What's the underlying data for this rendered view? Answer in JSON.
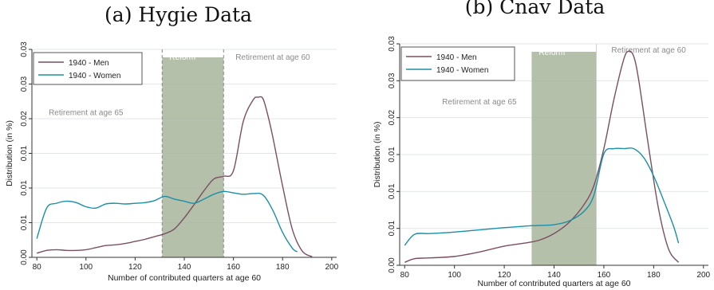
{
  "chart_data": [
    {
      "type": "line",
      "panel_title": "(a) Hygie Data",
      "xlabel": "Number of contributed quarters at age 60",
      "ylabel": "Distribution (in %)",
      "xlim": [
        78,
        202
      ],
      "ylim": [
        0,
        0.03
      ],
      "xticks": [
        80,
        100,
        120,
        140,
        160,
        180,
        200
      ],
      "yticks": [
        0.0,
        0.005,
        0.01,
        0.015,
        0.02,
        0.025,
        0.03
      ],
      "ytick_labels": [
        "0.00",
        "0.01",
        "0.01",
        "0.01",
        "0.02",
        "0.03",
        "0.03"
      ],
      "grid": true,
      "legend_position": "top-left",
      "shaded_region": {
        "label": "Reform",
        "x0": 131,
        "x1": 156,
        "dashed_border": true
      },
      "annotations": [
        {
          "text": "Retirement at age 65",
          "x": 100,
          "y": 0.0205
        },
        {
          "text": "Retirement at age 60",
          "x": 176,
          "y": 0.0285
        }
      ],
      "series": [
        {
          "name": "1940 - Men",
          "color": "#7a4f63",
          "x": [
            80,
            84,
            88,
            92,
            96,
            100,
            104,
            108,
            112,
            116,
            120,
            124,
            128,
            132,
            136,
            140,
            144,
            148,
            152,
            156,
            160,
            164,
            168,
            170,
            172,
            174,
            176,
            180,
            184,
            188,
            192
          ],
          "y": [
            0.0006,
            0.001,
            0.0011,
            0.001,
            0.001,
            0.0011,
            0.0014,
            0.0017,
            0.0018,
            0.002,
            0.0023,
            0.0026,
            0.003,
            0.0034,
            0.0041,
            0.0057,
            0.0076,
            0.0096,
            0.0113,
            0.0117,
            0.0125,
            0.0196,
            0.0227,
            0.0231,
            0.0229,
            0.0205,
            0.0174,
            0.0103,
            0.004,
            0.0009,
            0.0001
          ]
        },
        {
          "name": "1940 - Women",
          "color": "#1a8fa6",
          "x": [
            80,
            84,
            88,
            92,
            96,
            100,
            104,
            108,
            112,
            116,
            120,
            124,
            128,
            132,
            136,
            140,
            144,
            148,
            152,
            156,
            160,
            164,
            168,
            172,
            176,
            180,
            184,
            186
          ],
          "y": [
            0.0027,
            0.0071,
            0.0078,
            0.0081,
            0.0079,
            0.0073,
            0.0071,
            0.0077,
            0.0078,
            0.0077,
            0.0078,
            0.0079,
            0.0082,
            0.0088,
            0.0084,
            0.0081,
            0.0078,
            0.0084,
            0.0091,
            0.0095,
            0.0093,
            0.0091,
            0.0092,
            0.009,
            0.0068,
            0.0036,
            0.0013,
            0.0008
          ]
        }
      ]
    },
    {
      "type": "line",
      "panel_title": "(b) Cnav Data",
      "xlabel": "Number of contributed quarters at age 60",
      "ylabel": "Distribution (in %)",
      "xlim": [
        78,
        202
      ],
      "ylim": [
        0,
        0.03
      ],
      "xticks": [
        80,
        100,
        120,
        140,
        160,
        180,
        200
      ],
      "yticks": [
        0.0,
        0.005,
        0.01,
        0.015,
        0.02,
        0.025,
        0.03
      ],
      "ytick_labels": [
        "0.00",
        "0.01",
        "0.01",
        "0.01",
        "0.02",
        "0.03",
        "0.03"
      ],
      "grid": true,
      "legend_position": "top-left",
      "shaded_region": {
        "label": "Reform",
        "x0": 131,
        "x1": 157,
        "dashed_border": false
      },
      "annotations": [
        {
          "text": "Retirement at age 65",
          "x": 110,
          "y": 0.0218
        },
        {
          "text": "Retirement at age 60",
          "x": 178,
          "y": 0.0288
        }
      ],
      "series": [
        {
          "name": "1940 - Men",
          "color": "#7a4f63",
          "x": [
            80,
            84,
            90,
            100,
            110,
            120,
            128,
            134,
            140,
            146,
            152,
            156,
            160,
            164,
            168,
            170,
            172,
            174,
            178,
            182,
            186,
            190
          ],
          "y": [
            0.0004,
            0.0009,
            0.001,
            0.0012,
            0.0018,
            0.0026,
            0.003,
            0.0034,
            0.0043,
            0.0058,
            0.0082,
            0.0108,
            0.0158,
            0.0224,
            0.0279,
            0.029,
            0.0283,
            0.0251,
            0.016,
            0.0076,
            0.0022,
            0.0004
          ]
        },
        {
          "name": "1940 - Women",
          "color": "#1a8fa6",
          "x": [
            80,
            84,
            90,
            100,
            110,
            120,
            128,
            134,
            140,
            146,
            152,
            156,
            160,
            164,
            168,
            172,
            176,
            180,
            184,
            188,
            190
          ],
          "y": [
            0.0027,
            0.0042,
            0.0043,
            0.0045,
            0.0048,
            0.0051,
            0.0053,
            0.0054,
            0.0055,
            0.006,
            0.0073,
            0.0095,
            0.0151,
            0.0158,
            0.0158,
            0.0158,
            0.0146,
            0.0121,
            0.0088,
            0.0053,
            0.003
          ]
        }
      ]
    }
  ]
}
